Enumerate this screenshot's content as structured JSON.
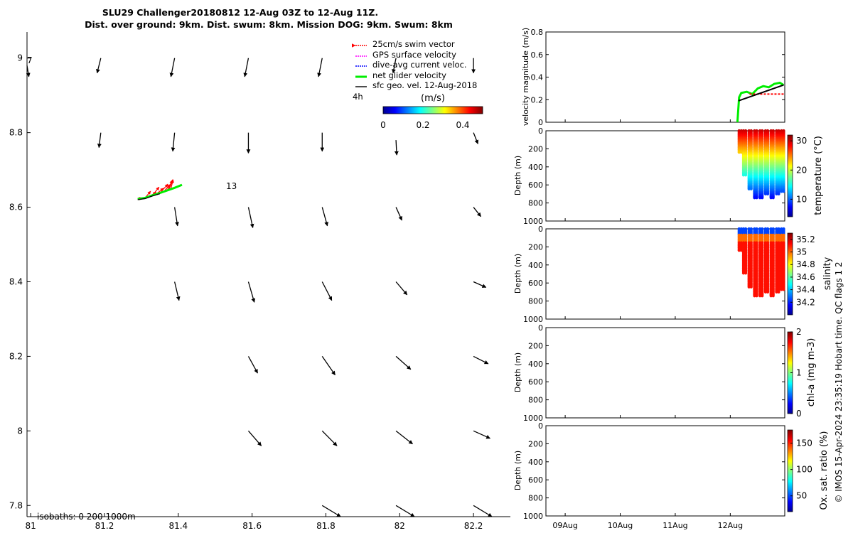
{
  "title": {
    "line1": "SLU29 Challenger20180812 12-Aug 03Z to 12-Aug 11Z.",
    "line2": "Dist. over ground: 9km. Dist. swum: 8km. Mission DOG: 9km. Swum: 8km"
  },
  "credit": "© IMOS 15-Apr-2024 23:35:19 Hobart time. QC flags 1  2",
  "colors": {
    "swim_vector": "#ff0000",
    "gps_surface": "#ff00ff",
    "dive_avg_current": "#0000ff",
    "net_glider": "#00ee00",
    "sfc_geo": "#000000"
  },
  "chart_data": [
    {
      "id": "map",
      "type": "scatter",
      "xlim": [
        80.99,
        82.3
      ],
      "ylim": [
        7.77,
        9.07
      ],
      "xticks": [
        81,
        81.2,
        81.4,
        81.6,
        81.8,
        82,
        82.2
      ],
      "xtick_labels": [
        "81",
        "81.2",
        "81.4",
        "81.6",
        "81.8",
        "82",
        "82.2"
      ],
      "yticks": [
        7.8,
        8,
        8.2,
        8.4,
        8.6,
        8.8,
        9
      ],
      "ytick_labels": [
        "7.8",
        "8",
        "8.2",
        "8.4",
        "8.6",
        "8.8",
        "9"
      ],
      "legend": {
        "position": "top-right",
        "entries": [
          "25cm/s swim vector",
          "GPS surface velocity",
          "dive-avg current veloc.",
          "net glider velocity",
          "sfc geo. vel. 12-Aug-2018"
        ]
      },
      "scale_label": "4h",
      "colorbar": {
        "label": "(m/s)",
        "range": [
          0,
          0.5
        ],
        "ticks": [
          0,
          0.2,
          0.4
        ],
        "tick_labels": [
          "0",
          "0.2",
          "0.4"
        ]
      },
      "isobaths_label": "isobaths: 0   200  1000m",
      "annotations": [
        {
          "text": "13",
          "x": 81.53,
          "y": 8.65
        },
        {
          "text": "7",
          "x": 80.99,
          "y": 8.99
        }
      ],
      "track": [
        [
          81.29,
          8.622
        ],
        [
          81.31,
          8.625
        ],
        [
          81.33,
          8.632
        ],
        [
          81.35,
          8.638
        ],
        [
          81.37,
          8.645
        ],
        [
          81.39,
          8.652
        ],
        [
          81.41,
          8.66
        ]
      ],
      "swim_vectors": [
        [
          81.29,
          8.622,
          0.012,
          0.003
        ],
        [
          81.31,
          8.625,
          0.015,
          0.018
        ],
        [
          81.32,
          8.628,
          0.02,
          0.012
        ],
        [
          81.33,
          8.632,
          0.018,
          0.022
        ],
        [
          81.34,
          8.635,
          0.02,
          0.016
        ],
        [
          81.35,
          8.638,
          0.022,
          0.024
        ],
        [
          81.36,
          8.641,
          0.018,
          0.02
        ],
        [
          81.37,
          8.645,
          0.014,
          0.026
        ],
        [
          81.375,
          8.648,
          0.01,
          0.026
        ],
        [
          81.38,
          8.65,
          0.006,
          0.024
        ]
      ],
      "geo_vectors": [
        [
          80.99,
          8.98,
          0.005,
          -0.03
        ],
        [
          81.19,
          9.0,
          -0.01,
          -0.04
        ],
        [
          81.39,
          9.0,
          -0.01,
          -0.05
        ],
        [
          81.59,
          9.0,
          -0.01,
          -0.05
        ],
        [
          81.79,
          9.0,
          -0.01,
          -0.05
        ],
        [
          81.99,
          9.0,
          -0.008,
          -0.04
        ],
        [
          82.2,
          9.0,
          0.0,
          -0.04
        ],
        [
          81.19,
          8.8,
          -0.005,
          -0.04
        ],
        [
          81.39,
          8.8,
          -0.005,
          -0.05
        ],
        [
          81.59,
          8.8,
          0.0,
          -0.055
        ],
        [
          81.79,
          8.8,
          0.0,
          -0.05
        ],
        [
          81.99,
          8.78,
          0.002,
          -0.04
        ],
        [
          82.2,
          8.8,
          0.012,
          -0.03
        ],
        [
          81.39,
          8.6,
          0.008,
          -0.05
        ],
        [
          81.59,
          8.6,
          0.012,
          -0.055
        ],
        [
          81.79,
          8.6,
          0.014,
          -0.05
        ],
        [
          81.99,
          8.6,
          0.016,
          -0.035
        ],
        [
          82.2,
          8.6,
          0.02,
          -0.025
        ],
        [
          81.39,
          8.4,
          0.012,
          -0.05
        ],
        [
          81.59,
          8.4,
          0.016,
          -0.055
        ],
        [
          81.79,
          8.4,
          0.026,
          -0.05
        ],
        [
          81.99,
          8.4,
          0.03,
          -0.035
        ],
        [
          82.2,
          8.4,
          0.034,
          -0.015
        ],
        [
          81.59,
          8.2,
          0.025,
          -0.045
        ],
        [
          81.79,
          8.2,
          0.035,
          -0.05
        ],
        [
          81.99,
          8.2,
          0.04,
          -0.035
        ],
        [
          82.2,
          8.2,
          0.04,
          -0.02
        ],
        [
          81.59,
          8.0,
          0.035,
          -0.04
        ],
        [
          81.79,
          8.0,
          0.04,
          -0.04
        ],
        [
          81.99,
          8.0,
          0.045,
          -0.035
        ],
        [
          82.2,
          8.0,
          0.045,
          -0.02
        ],
        [
          81.79,
          7.8,
          0.05,
          -0.03
        ],
        [
          81.99,
          7.8,
          0.05,
          -0.03
        ],
        [
          82.2,
          7.8,
          0.05,
          -0.03
        ]
      ]
    },
    {
      "id": "velocity",
      "type": "line",
      "ylabel": "velocity magnitude (m/s)",
      "ylim": [
        0,
        0.8
      ],
      "yticks": [
        0,
        0.2,
        0.4,
        0.6,
        0.8
      ],
      "ytick_labels": [
        "0",
        "0.2",
        "0.4",
        "0.6",
        "0.8"
      ],
      "xlim": [
        8.65,
        12.99
      ],
      "series": [
        {
          "key": "net_glider",
          "x": [
            12.13,
            12.16,
            12.2,
            12.3,
            12.4,
            12.5,
            12.6,
            12.7,
            12.8,
            12.9,
            12.97
          ],
          "y": [
            0.0,
            0.22,
            0.26,
            0.27,
            0.25,
            0.3,
            0.32,
            0.31,
            0.34,
            0.35,
            0.33
          ]
        },
        {
          "key": "swim_vector",
          "x": [
            12.35,
            12.97
          ],
          "y": [
            0.25,
            0.25
          ]
        },
        {
          "key": "sfc_geo",
          "x": [
            12.15,
            12.97
          ],
          "y": [
            0.19,
            0.33
          ]
        }
      ]
    },
    {
      "id": "temperature",
      "type": "scatter",
      "ylabel": "Depth (m)",
      "ylim": [
        1000,
        0
      ],
      "yticks": [
        0,
        200,
        400,
        600,
        800,
        1000
      ],
      "ytick_labels": [
        "0",
        "200",
        "400",
        "600",
        "800",
        "1000"
      ],
      "colorbar": {
        "label": "temperature (°C)",
        "range": [
          4,
          32
        ],
        "ticks": [
          10,
          20,
          30
        ],
        "tick_labels": [
          "10",
          "20",
          "30"
        ]
      },
      "dives": [
        [
          12.18,
          250
        ],
        [
          12.26,
          500
        ],
        [
          12.36,
          650
        ],
        [
          12.46,
          750
        ],
        [
          12.56,
          750
        ],
        [
          12.66,
          700
        ],
        [
          12.76,
          750
        ],
        [
          12.86,
          700
        ],
        [
          12.95,
          680
        ]
      ]
    },
    {
      "id": "salinity",
      "type": "scatter",
      "ylabel": "Depth (m)",
      "ylim": [
        1000,
        0
      ],
      "yticks": [
        0,
        200,
        400,
        600,
        800,
        1000
      ],
      "ytick_labels": [
        "0",
        "200",
        "400",
        "600",
        "800",
        "1000"
      ],
      "colorbar": {
        "label": "salinity",
        "range": [
          34.0,
          35.3
        ],
        "ticks": [
          34.2,
          34.4,
          34.6,
          34.8,
          35,
          35.2
        ],
        "tick_labels": [
          "34.2",
          "34.4",
          "34.6",
          "34.8",
          "35",
          "35.2"
        ]
      },
      "dives": [
        [
          12.18,
          250
        ],
        [
          12.26,
          500
        ],
        [
          12.36,
          650
        ],
        [
          12.46,
          750
        ],
        [
          12.56,
          750
        ],
        [
          12.66,
          700
        ],
        [
          12.76,
          750
        ],
        [
          12.86,
          700
        ],
        [
          12.95,
          680
        ]
      ]
    },
    {
      "id": "chla",
      "type": "scatter",
      "ylabel": "Depth (m)",
      "ylim": [
        1000,
        0
      ],
      "yticks": [
        0,
        200,
        400,
        600,
        800,
        1000
      ],
      "ytick_labels": [
        "0",
        "200",
        "400",
        "600",
        "800",
        "1000"
      ],
      "colorbar": {
        "label": "chl-a (mg m-3)",
        "range": [
          0,
          2
        ],
        "ticks": [
          0,
          1,
          2
        ],
        "tick_labels": [
          "0",
          "1",
          "2"
        ]
      }
    },
    {
      "id": "oxygen",
      "type": "scatter",
      "ylabel": "Depth (m)",
      "ylim": [
        1000,
        0
      ],
      "yticks": [
        0,
        200,
        400,
        600,
        800,
        1000
      ],
      "ytick_labels": [
        "0",
        "200",
        "400",
        "600",
        "800",
        "1000"
      ],
      "xlim": [
        8.65,
        12.99
      ],
      "xticks": [
        9.0,
        10.0,
        11.0,
        12.0
      ],
      "xtick_labels": [
        "09Aug",
        "10Aug",
        "11Aug",
        "12Aug"
      ],
      "colorbar": {
        "label": "Ox. sat. ratio (%)",
        "range": [
          20,
          175
        ],
        "ticks": [
          50,
          100,
          150
        ],
        "tick_labels": [
          "50",
          "100",
          "150"
        ]
      }
    }
  ]
}
